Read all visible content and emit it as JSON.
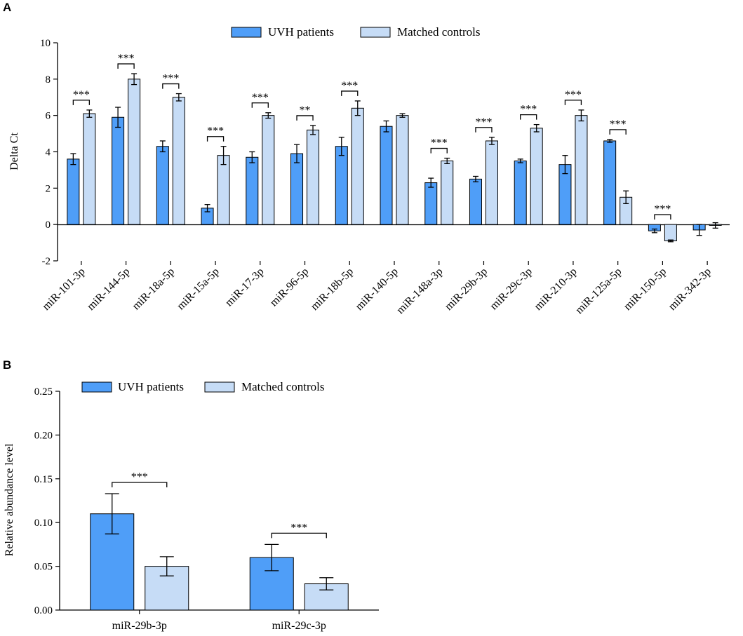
{
  "chart_data": [
    {
      "panel": "A",
      "type": "bar",
      "ylabel": "Delta Ct",
      "ylim": [
        -2,
        10
      ],
      "yticks": [
        -2,
        0,
        2,
        4,
        6,
        8,
        10
      ],
      "categories": [
        "miR-101-3p",
        "miR-144-5p",
        "miR-18a-5p",
        "miR-15a-5p",
        "miR-17-3p",
        "miR-96-5p",
        "miR-18b-5p",
        "miR-140-5p",
        "miR-148a-3p",
        "miR-29b-3p",
        "miR-29c-3p",
        "miR-210-3p",
        "miR-125a-5p",
        "miR-150-5p",
        "miR-342-3p"
      ],
      "series": [
        {
          "name": "UVH patients",
          "color": "#4f9ef8",
          "values": [
            3.6,
            5.9,
            4.3,
            0.9,
            3.7,
            3.9,
            4.3,
            5.4,
            2.3,
            2.5,
            3.5,
            3.3,
            4.6,
            -0.35,
            -0.3
          ],
          "errors": [
            0.3,
            0.55,
            0.3,
            0.2,
            0.3,
            0.5,
            0.5,
            0.3,
            0.25,
            0.15,
            0.1,
            0.5,
            0.08,
            0.1,
            0.3
          ]
        },
        {
          "name": "Matched controls",
          "color": "#c6dcf6",
          "values": [
            6.1,
            8.0,
            7.0,
            3.8,
            6.0,
            5.2,
            6.4,
            6.0,
            3.5,
            4.6,
            5.3,
            6.0,
            1.5,
            -0.9,
            -0.05
          ],
          "errors": [
            0.2,
            0.3,
            0.2,
            0.5,
            0.15,
            0.25,
            0.4,
            0.1,
            0.15,
            0.2,
            0.2,
            0.3,
            0.35,
            0.05,
            0.15
          ]
        }
      ],
      "significance": [
        "***",
        "***",
        "***",
        "***",
        "***",
        "**",
        "***",
        "",
        "***",
        "***",
        "***",
        "***",
        "***",
        "***",
        ""
      ],
      "legend": [
        "UVH patients",
        "Matched controls"
      ],
      "legend_position": "top-center"
    },
    {
      "panel": "B",
      "type": "bar",
      "ylabel": "Relative abundance level",
      "ylim": [
        0,
        0.25
      ],
      "yticks": [
        "0.00",
        "0.05",
        "0.10",
        "0.15",
        "0.20",
        "0.25"
      ],
      "categories": [
        "miR-29b-3p",
        "miR-29c-3p"
      ],
      "series": [
        {
          "name": "UVH patients",
          "color": "#4f9ef8",
          "values": [
            0.11,
            0.06
          ],
          "errors": [
            0.023,
            0.015
          ]
        },
        {
          "name": "Matched controls",
          "color": "#c6dcf6",
          "values": [
            0.05,
            0.03
          ],
          "errors": [
            0.011,
            0.007
          ]
        }
      ],
      "significance": [
        "***",
        "***"
      ],
      "legend": [
        "UVH patients",
        "Matched controls"
      ],
      "legend_position": "top-left"
    }
  ]
}
